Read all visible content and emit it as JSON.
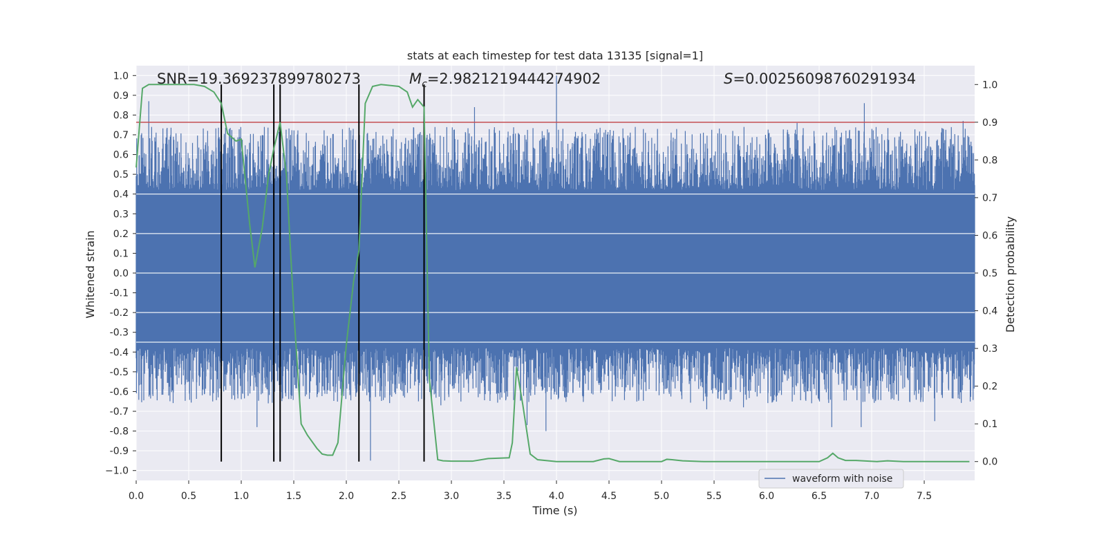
{
  "chart_data": {
    "type": "line",
    "title": "stats at each timestep for test data 13135 [signal=1]",
    "xlabel": "Time (s)",
    "ylabel_left": "Whitened strain",
    "ylabel_right": "Detection probability",
    "xlim": [
      0,
      7.98
    ],
    "ylim_left": [
      -1.05,
      1.05
    ],
    "ylim_right": [
      -0.05,
      1.05
    ],
    "x_ticks": [
      {
        "value": 0.0,
        "label": "0.0"
      },
      {
        "value": 0.5,
        "label": "0.5"
      },
      {
        "value": 1.0,
        "label": "1.0"
      },
      {
        "value": 1.5,
        "label": "1.5"
      },
      {
        "value": 2.0,
        "label": "2.0"
      },
      {
        "value": 2.5,
        "label": "2.5"
      },
      {
        "value": 3.0,
        "label": "3.0"
      },
      {
        "value": 3.5,
        "label": "3.5"
      },
      {
        "value": 4.0,
        "label": "4.0"
      },
      {
        "value": 4.5,
        "label": "4.5"
      },
      {
        "value": 5.0,
        "label": "5.0"
      },
      {
        "value": 5.5,
        "label": "5.5"
      },
      {
        "value": 6.0,
        "label": "6.0"
      },
      {
        "value": 6.5,
        "label": "6.5"
      },
      {
        "value": 7.0,
        "label": "7.0"
      },
      {
        "value": 7.5,
        "label": "7.5"
      }
    ],
    "y_left_ticks": [
      {
        "value": 1.0,
        "label": "1.0"
      },
      {
        "value": 0.9,
        "label": "0.9"
      },
      {
        "value": 0.8,
        "label": "0.8"
      },
      {
        "value": 0.7,
        "label": "0.7"
      },
      {
        "value": 0.6,
        "label": "0.6"
      },
      {
        "value": 0.5,
        "label": "0.5"
      },
      {
        "value": 0.4,
        "label": "0.4"
      },
      {
        "value": 0.3,
        "label": "0.3"
      },
      {
        "value": 0.2,
        "label": "0.2"
      },
      {
        "value": 0.1,
        "label": "0.1"
      },
      {
        "value": 0.0,
        "label": "0.0"
      },
      {
        "value": -0.1,
        "label": "-0.1"
      },
      {
        "value": -0.2,
        "label": "-0.2"
      },
      {
        "value": -0.3,
        "label": "-0.3"
      },
      {
        "value": -0.4,
        "label": "-0.4"
      },
      {
        "value": -0.5,
        "label": "-0.5"
      },
      {
        "value": -0.6,
        "label": "-0.6"
      },
      {
        "value": -0.7,
        "label": "-0.7"
      },
      {
        "value": -0.8,
        "label": "-0.8"
      },
      {
        "value": -0.9,
        "label": "-0.9"
      },
      {
        "value": -1.0,
        "label": "−1.0"
      }
    ],
    "y_right_ticks": [
      {
        "value": 1.0,
        "label": "1.0"
      },
      {
        "value": 0.9,
        "label": "0.9"
      },
      {
        "value": 0.8,
        "label": "0.8"
      },
      {
        "value": 0.7,
        "label": "0.7"
      },
      {
        "value": 0.6,
        "label": "0.6"
      },
      {
        "value": 0.5,
        "label": "0.5"
      },
      {
        "value": 0.4,
        "label": "0.4"
      },
      {
        "value": 0.3,
        "label": "0.3"
      },
      {
        "value": 0.2,
        "label": "0.2"
      },
      {
        "value": 0.1,
        "label": "0.1"
      },
      {
        "value": 0.0,
        "label": "0.0"
      }
    ],
    "annotations": {
      "snr": "SNR=19.369237899780273",
      "mc_symbol": "M",
      "mc_subscript": "c",
      "mc_value": "=2.9821219444274902",
      "s_symbol": "S",
      "s_value": "=0.00256098760291934"
    },
    "legend": {
      "label": "waveform with noise",
      "placement": "bottom-right"
    },
    "threshold": {
      "axis": "right",
      "value": 0.9
    },
    "event_markers": {
      "x": [
        0.81,
        1.31,
        1.37,
        2.12,
        2.74
      ],
      "y_range_right": [
        0.0,
        1.0
      ]
    },
    "waveform": {
      "name": "waveform with noise",
      "duration": 7.98,
      "sample_count": 3200,
      "core_band": [
        -0.38,
        0.42
      ],
      "peaks": [
        {
          "x": 0.12,
          "y": 0.87
        },
        {
          "x": 0.68,
          "y": 0.72
        },
        {
          "x": 0.81,
          "y": -0.65
        },
        {
          "x": 1.15,
          "y": -0.78
        },
        {
          "x": 1.31,
          "y": -0.32
        },
        {
          "x": 1.37,
          "y": 0.71
        },
        {
          "x": 2.12,
          "y": 0.79
        },
        {
          "x": 2.23,
          "y": -0.95
        },
        {
          "x": 2.74,
          "y": 0.73
        },
        {
          "x": 3.22,
          "y": 0.84
        },
        {
          "x": 3.9,
          "y": -0.8
        },
        {
          "x": 4.0,
          "y": 1.0
        },
        {
          "x": 6.62,
          "y": -0.78
        },
        {
          "x": 6.93,
          "y": 0.86
        },
        {
          "x": 6.9,
          "y": -0.78
        },
        {
          "x": 5.43,
          "y": -0.69
        },
        {
          "x": 5.78,
          "y": -0.68
        },
        {
          "x": 6.29,
          "y": 0.76
        },
        {
          "x": 7.87,
          "y": 0.77
        },
        {
          "x": 7.6,
          "y": -0.75
        },
        {
          "x": 0.31,
          "y": -0.62
        },
        {
          "x": 3.72,
          "y": -0.77
        },
        {
          "x": 2.9,
          "y": -0.67
        },
        {
          "x": 4.75,
          "y": 0.74
        }
      ]
    },
    "detection_probability": {
      "name": "detection probability",
      "x": [
        0.0,
        0.06,
        0.12,
        0.25,
        0.4,
        0.55,
        0.65,
        0.74,
        0.81,
        0.87,
        0.95,
        1.0,
        1.08,
        1.13,
        1.2,
        1.26,
        1.31,
        1.37,
        1.43,
        1.5,
        1.57,
        1.63,
        1.72,
        1.77,
        1.82,
        1.87,
        1.92,
        2.0,
        2.07,
        2.12,
        2.18,
        2.25,
        2.33,
        2.5,
        2.58,
        2.63,
        2.68,
        2.74,
        2.79,
        2.87,
        2.92,
        3.0,
        3.2,
        3.35,
        3.55,
        3.58,
        3.62,
        3.68,
        3.75,
        3.82,
        4.0,
        4.35,
        4.45,
        4.5,
        4.6,
        5.0,
        5.05,
        5.1,
        5.2,
        5.4,
        6.0,
        6.5,
        6.58,
        6.63,
        6.68,
        6.75,
        6.85,
        7.05,
        7.15,
        7.3,
        7.6,
        7.93
      ],
      "y": [
        0.78,
        0.99,
        1.0,
        1.0,
        1.0,
        1.0,
        0.995,
        0.98,
        0.95,
        0.87,
        0.85,
        0.855,
        0.63,
        0.515,
        0.62,
        0.76,
        0.83,
        0.9,
        0.76,
        0.4,
        0.1,
        0.07,
        0.035,
        0.02,
        0.017,
        0.017,
        0.05,
        0.31,
        0.48,
        0.56,
        0.95,
        0.995,
        1.0,
        0.995,
        0.98,
        0.94,
        0.96,
        0.94,
        0.22,
        0.005,
        0.002,
        0.001,
        0.001,
        0.008,
        0.01,
        0.05,
        0.25,
        0.15,
        0.02,
        0.005,
        0.0,
        0.0,
        0.007,
        0.008,
        0.0,
        0.0,
        0.006,
        0.005,
        0.002,
        0.0,
        0.0,
        0.0,
        0.01,
        0.022,
        0.01,
        0.003,
        0.003,
        0.0,
        0.002,
        0.0,
        0.0,
        0.0
      ]
    },
    "colors": {
      "background": "#eaeaf2",
      "grid": "#ffffff",
      "waveform": "#4c72b0",
      "probability": "#55a868",
      "threshold": "#c44e52",
      "markers": "#000000",
      "text": "#262626"
    }
  }
}
